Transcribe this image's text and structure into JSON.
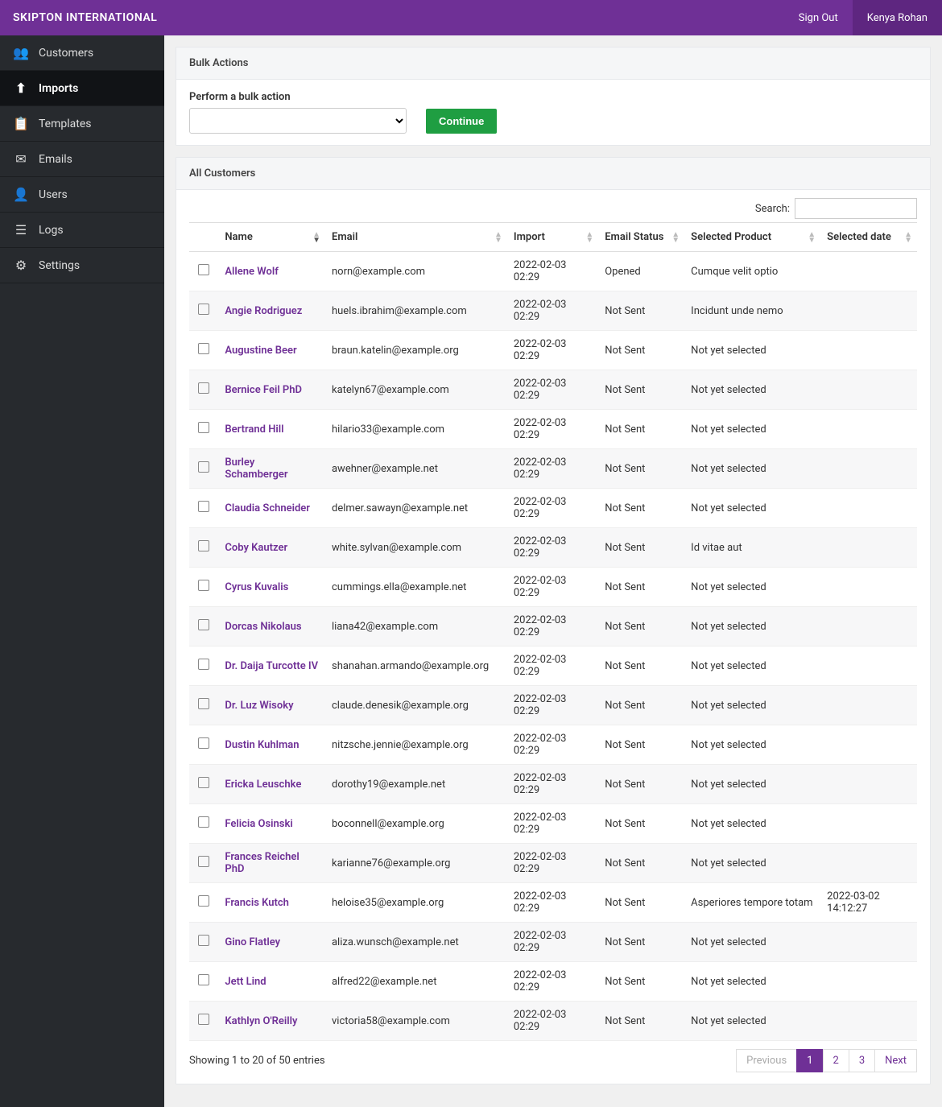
{
  "header": {
    "brand": "SKIPTON INTERNATIONAL",
    "signout": "Sign Out",
    "username": "Kenya Rohan"
  },
  "sidebar": {
    "items": [
      {
        "label": "Customers",
        "icon": "👥",
        "name": "sidebar-item-customers"
      },
      {
        "label": "Imports",
        "icon": "⬆",
        "name": "sidebar-item-imports",
        "active": true
      },
      {
        "label": "Templates",
        "icon": "📋",
        "name": "sidebar-item-templates"
      },
      {
        "label": "Emails",
        "icon": "✉",
        "name": "sidebar-item-emails"
      },
      {
        "label": "Users",
        "icon": "👤",
        "name": "sidebar-item-users"
      },
      {
        "label": "Logs",
        "icon": "☰",
        "name": "sidebar-item-logs"
      },
      {
        "label": "Settings",
        "icon": "⚙",
        "name": "sidebar-item-settings"
      }
    ]
  },
  "bulk": {
    "panel_title": "Bulk Actions",
    "label": "Perform a bulk action",
    "continue": "Continue"
  },
  "customers_panel": {
    "title": "All Customers",
    "search_label": "Search:",
    "columns": [
      "",
      "Name",
      "Email",
      "Import",
      "Email Status",
      "Selected Product",
      "Selected date"
    ],
    "rows": [
      {
        "name": "Allene Wolf",
        "email": "norn@example.com",
        "import": "2022-02-03 02:29",
        "status": "Opened",
        "product": "Cumque velit optio",
        "date": ""
      },
      {
        "name": "Angie Rodriguez",
        "email": "huels.ibrahim@example.com",
        "import": "2022-02-03 02:29",
        "status": "Not Sent",
        "product": "Incidunt unde nemo",
        "date": ""
      },
      {
        "name": "Augustine Beer",
        "email": "braun.katelin@example.org",
        "import": "2022-02-03 02:29",
        "status": "Not Sent",
        "product": "Not yet selected",
        "date": ""
      },
      {
        "name": "Bernice Feil PhD",
        "email": "katelyn67@example.com",
        "import": "2022-02-03 02:29",
        "status": "Not Sent",
        "product": "Not yet selected",
        "date": ""
      },
      {
        "name": "Bertrand Hill",
        "email": "hilario33@example.com",
        "import": "2022-02-03 02:29",
        "status": "Not Sent",
        "product": "Not yet selected",
        "date": ""
      },
      {
        "name": "Burley Schamberger",
        "email": "awehner@example.net",
        "import": "2022-02-03 02:29",
        "status": "Not Sent",
        "product": "Not yet selected",
        "date": ""
      },
      {
        "name": "Claudia Schneider",
        "email": "delmer.sawayn@example.net",
        "import": "2022-02-03 02:29",
        "status": "Not Sent",
        "product": "Not yet selected",
        "date": ""
      },
      {
        "name": "Coby Kautzer",
        "email": "white.sylvan@example.com",
        "import": "2022-02-03 02:29",
        "status": "Not Sent",
        "product": "Id vitae aut",
        "date": ""
      },
      {
        "name": "Cyrus Kuvalis",
        "email": "cummings.ella@example.net",
        "import": "2022-02-03 02:29",
        "status": "Not Sent",
        "product": "Not yet selected",
        "date": ""
      },
      {
        "name": "Dorcas Nikolaus",
        "email": "liana42@example.com",
        "import": "2022-02-03 02:29",
        "status": "Not Sent",
        "product": "Not yet selected",
        "date": ""
      },
      {
        "name": "Dr. Daija Turcotte IV",
        "email": "shanahan.armando@example.org",
        "import": "2022-02-03 02:29",
        "status": "Not Sent",
        "product": "Not yet selected",
        "date": ""
      },
      {
        "name": "Dr. Luz Wisoky",
        "email": "claude.denesik@example.org",
        "import": "2022-02-03 02:29",
        "status": "Not Sent",
        "product": "Not yet selected",
        "date": ""
      },
      {
        "name": "Dustin Kuhlman",
        "email": "nitzsche.jennie@example.org",
        "import": "2022-02-03 02:29",
        "status": "Not Sent",
        "product": "Not yet selected",
        "date": ""
      },
      {
        "name": "Ericka Leuschke",
        "email": "dorothy19@example.net",
        "import": "2022-02-03 02:29",
        "status": "Not Sent",
        "product": "Not yet selected",
        "date": ""
      },
      {
        "name": "Felicia Osinski",
        "email": "boconnell@example.org",
        "import": "2022-02-03 02:29",
        "status": "Not Sent",
        "product": "Not yet selected",
        "date": ""
      },
      {
        "name": "Frances Reichel PhD",
        "email": "karianne76@example.org",
        "import": "2022-02-03 02:29",
        "status": "Not Sent",
        "product": "Not yet selected",
        "date": ""
      },
      {
        "name": "Francis Kutch",
        "email": "heloise35@example.org",
        "import": "2022-02-03 02:29",
        "status": "Not Sent",
        "product": "Asperiores tempore totam",
        "date": "2022-03-02 14:12:27"
      },
      {
        "name": "Gino Flatley",
        "email": "aliza.wunsch@example.net",
        "import": "2022-02-03 02:29",
        "status": "Not Sent",
        "product": "Not yet selected",
        "date": ""
      },
      {
        "name": "Jett Lind",
        "email": "alfred22@example.net",
        "import": "2022-02-03 02:29",
        "status": "Not Sent",
        "product": "Not yet selected",
        "date": ""
      },
      {
        "name": "Kathlyn O'Reilly",
        "email": "victoria58@example.com",
        "import": "2022-02-03 02:29",
        "status": "Not Sent",
        "product": "Not yet selected",
        "date": ""
      }
    ],
    "footer_info": "Showing 1 to 20 of 50 entries",
    "pagination": {
      "previous": "Previous",
      "pages": [
        "1",
        "2",
        "3"
      ],
      "next": "Next",
      "active": 0
    }
  },
  "colors": {
    "brand": "#6f3096",
    "brand_dark": "#5e2680",
    "sidebar_bg": "#272a2e",
    "green": "#1f9e42"
  }
}
